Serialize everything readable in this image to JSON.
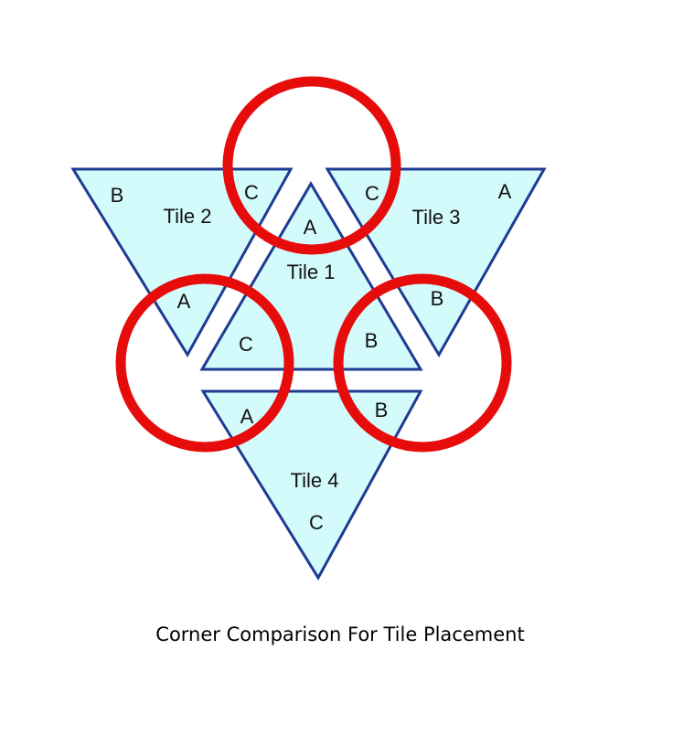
{
  "colors": {
    "tile_fill": "#d4fbfb",
    "tile_stroke": "#1f3a93",
    "ring_stroke": "#e60c0c",
    "text": "#111111",
    "background": "#ffffff"
  },
  "tiles": [
    {
      "label": "Tile 1",
      "corners": [
        "A",
        "B",
        "C"
      ]
    },
    {
      "label": "Tile 2",
      "corners": [
        "B",
        "C",
        "A"
      ]
    },
    {
      "label": "Tile 3",
      "corners": [
        "C",
        "A",
        "B"
      ]
    },
    {
      "label": "Tile 4",
      "corners": [
        "A",
        "B",
        "C"
      ]
    }
  ],
  "caption": "Corner Comparison For Tile Placement"
}
